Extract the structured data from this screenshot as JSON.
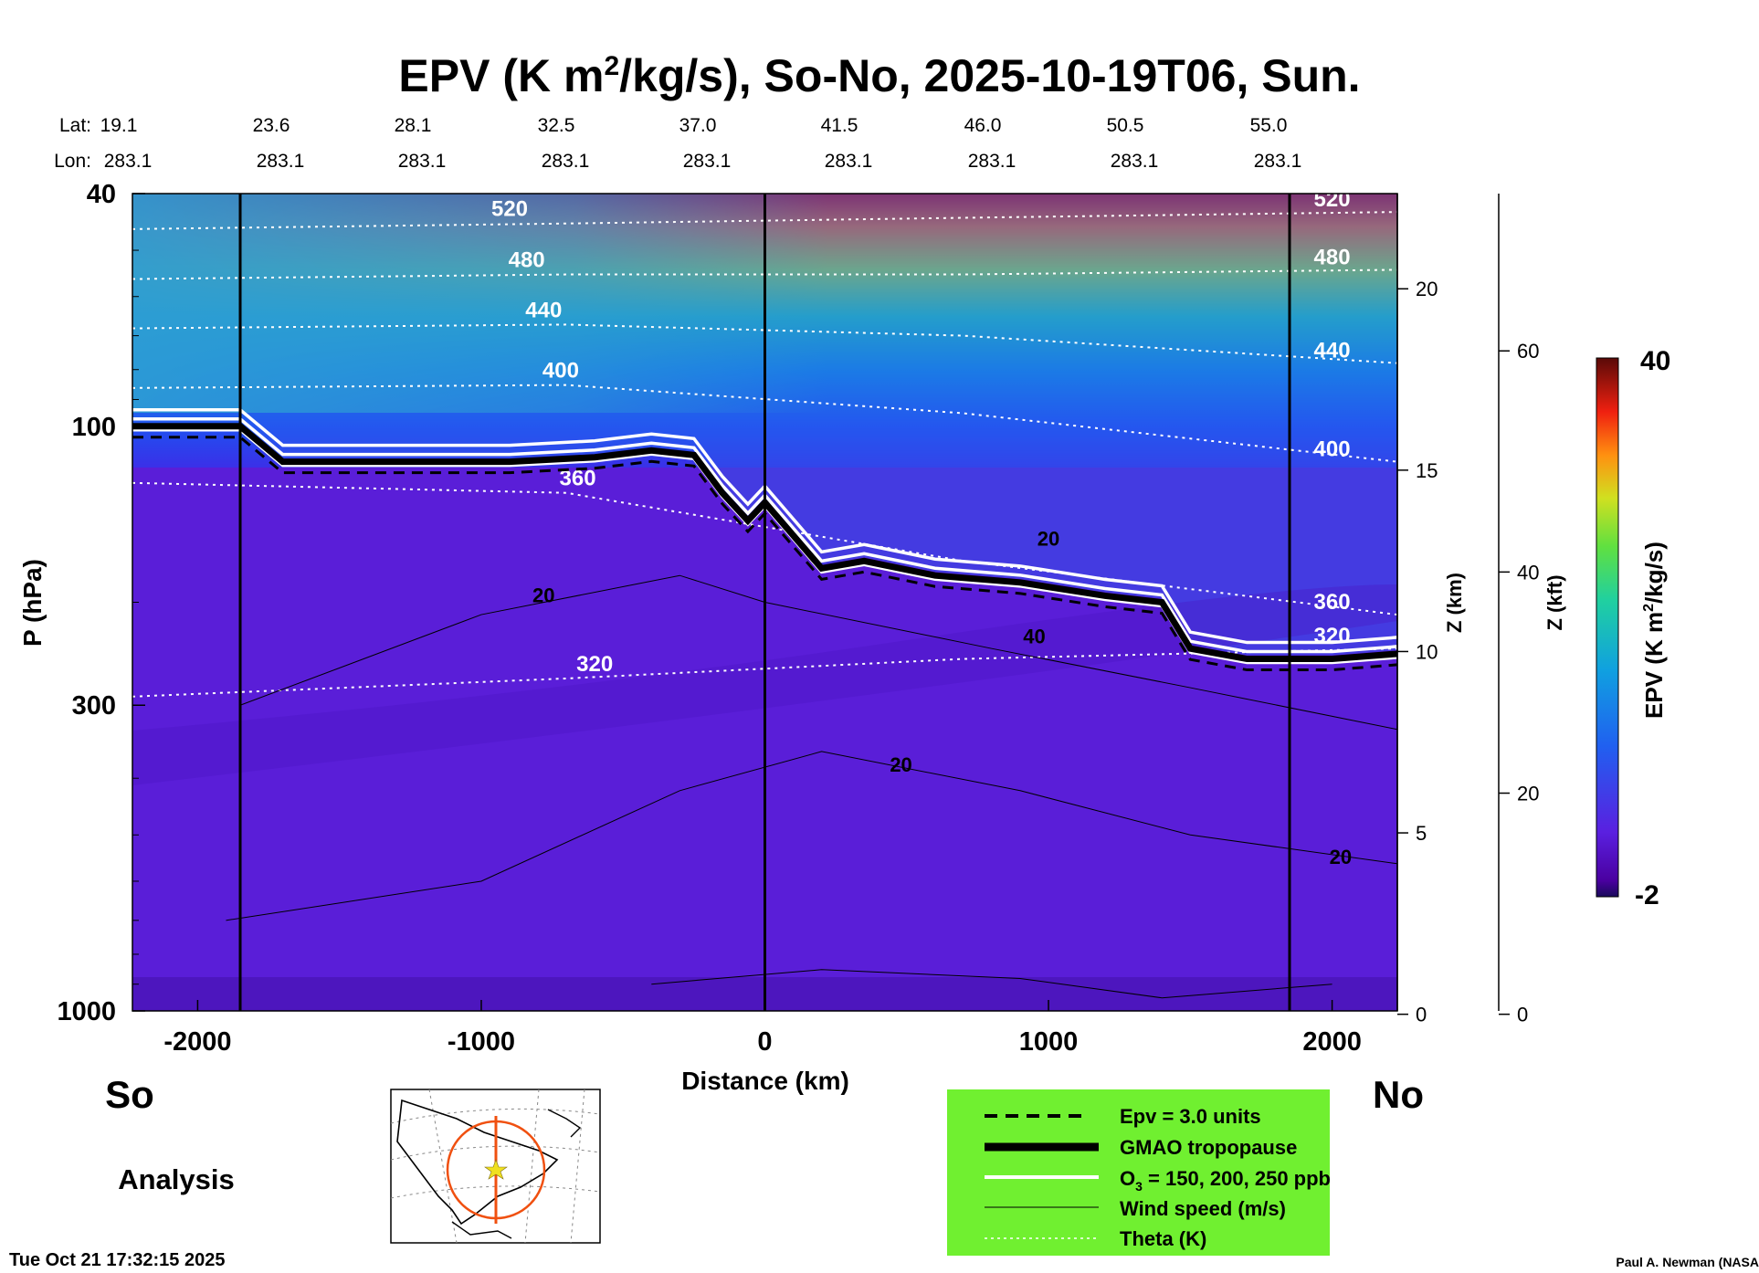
{
  "title": {
    "pre": "EPV (K m",
    "sup": "2",
    "post": "/kg/s), So-No, 2025-10-19T06, Sun."
  },
  "latlon": {
    "lat_label": "Lat:",
    "lon_label": "Lon:",
    "lats": [
      "19.1",
      "23.6",
      "28.1",
      "32.5",
      "37.0",
      "41.5",
      "46.0",
      "50.5",
      "55.0"
    ],
    "lons": [
      "283.1",
      "283.1",
      "283.1",
      "283.1",
      "283.1",
      "283.1",
      "283.1",
      "283.1",
      "283.1"
    ]
  },
  "corner_labels": {
    "left": "So",
    "right": "No",
    "analysis": "Analysis"
  },
  "timestamp": "Tue Oct 21 17:32:15 2025",
  "credit": "Paul A. Newman (NASA",
  "legend": {
    "background": "#70f030",
    "entries": [
      {
        "style": "dashed",
        "text": "Epv = 3.0 units"
      },
      {
        "style": "thick",
        "text": "GMAO tropopause"
      },
      {
        "style": "double-white",
        "text_pre": "O",
        "text_sub": "3",
        "text_post": " = 150, 200, 250 ppb"
      },
      {
        "style": "thin",
        "text": "Wind speed (m/s)"
      },
      {
        "style": "dotted-white",
        "text": "Theta (K)"
      }
    ]
  },
  "colorbar": {
    "max_label": "40",
    "min_label": "-2",
    "title_pre": "EPV (K m",
    "title_sup": "2",
    "title_post": "/kg/s)"
  },
  "chart_data": {
    "type": "heatmap",
    "title": "EPV (K m2/kg/s), So-No, 2025-10-19T06, Sun.",
    "xlabel": "Distance (km)",
    "ylabel": "P (hPa)",
    "xlim": [
      -2230,
      2230
    ],
    "ylim": [
      1000,
      40
    ],
    "y_scale": "log",
    "x_ticks": [
      -2000,
      -1000,
      0,
      1000,
      2000
    ],
    "y_ticks": [
      40,
      100,
      300,
      1000
    ],
    "z_km_axis": {
      "label": "Z (km)",
      "ticks": [
        0,
        5,
        10,
        15,
        20
      ]
    },
    "z_kft_axis": {
      "label": "Z (kft)",
      "ticks": [
        0,
        20,
        40,
        60
      ]
    },
    "vertical_markers_km": [
      -1850,
      0,
      1850
    ],
    "colorbar_range": [
      -2,
      40
    ],
    "tropopause_hpa": {
      "x": [
        -2230,
        -1850,
        -1700,
        -1300,
        -900,
        -600,
        -400,
        -250,
        -150,
        -60,
        0,
        200,
        350,
        600,
        900,
        1200,
        1400,
        1500,
        1700,
        1850,
        2000,
        2230
      ],
      "p": [
        100,
        100,
        115,
        115,
        115,
        113,
        110,
        112,
        130,
        145,
        135,
        175,
        170,
        180,
        185,
        195,
        200,
        240,
        250,
        250,
        250,
        245
      ]
    },
    "theta_contours": [
      {
        "label": "520",
        "p": [
          46,
          45,
          44,
          43
        ]
      },
      {
        "label": "480",
        "p": [
          56,
          55,
          55,
          54
        ]
      },
      {
        "label": "440",
        "p": [
          68,
          67,
          70,
          78
        ]
      },
      {
        "label": "400",
        "p": [
          86,
          85,
          95,
          115
        ]
      },
      {
        "label": "360",
        "p": [
          125,
          130,
          170,
          210
        ]
      },
      {
        "label": "320",
        "p": [
          290,
          270,
          250,
          240
        ]
      }
    ],
    "theta_labels": [
      "520",
      "480",
      "440",
      "400",
      "360",
      "320"
    ],
    "wind_speed_labels": [
      "20",
      "40"
    ]
  }
}
